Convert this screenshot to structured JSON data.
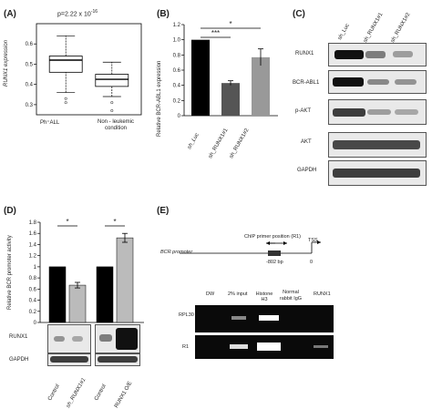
{
  "panelA": {
    "label": "(A)",
    "pvalue_text": "p=2.22 x 10",
    "pvalue_exp": "-16",
    "ylabel": "RUNX1 expression",
    "yticks": [
      "0.3",
      "0.4",
      "0.5",
      "0.6"
    ],
    "groups": [
      "Ph⁺ALL",
      "Non - leukemic condition"
    ]
  },
  "panelB": {
    "label": "(B)",
    "ylabel": "Relative BCR-ABL1 expression",
    "yticks": [
      "0",
      "0.2",
      "0.4",
      "0.6",
      "0.8",
      "1.0",
      "1.2"
    ],
    "xlabels": [
      "sh_Luc",
      "sh_RUNX1#1",
      "sh_RUNX1#2"
    ],
    "sig1": "***",
    "sig2": "*"
  },
  "panelC": {
    "label": "(C)",
    "lanes": [
      "sh_Luc",
      "sh_RUNX1#1",
      "sh_RUNX1#2"
    ],
    "rows": [
      "RUNX1",
      "BCR-ABL1",
      "p-AKT",
      "AKT",
      "GAPDH"
    ]
  },
  "panelD": {
    "label": "(D)",
    "ylabel": "Relative BCR promoter activity",
    "yticks": [
      "0",
      "0.2",
      "0.4",
      "0.6",
      "0.8",
      "1",
      "1.2",
      "1.4",
      "1.6",
      "1.8"
    ],
    "sig": "*",
    "blots": [
      "RUNX1",
      "GAPDH"
    ],
    "xlabels": [
      "Control",
      "sh_RUNX1#1",
      "Control",
      "RUNX1 O/E"
    ]
  },
  "panelE": {
    "label": "(E)",
    "primer_label": "ChIP primer position (R1)",
    "promoter_label": "BCR promoter",
    "tss": "TSS",
    "pos1": "-802 bp",
    "pos2": "0",
    "lanes": [
      "DW",
      "2% input",
      "Histone H3",
      "Normal rabbit IgG",
      "RUNX1"
    ],
    "rows": [
      "RPL30",
      "R1"
    ]
  },
  "chart_data": [
    {
      "type": "box",
      "ylabel": "RUNX1 expression",
      "ylim": [
        0.25,
        0.7
      ],
      "categories": [
        "Ph⁺ALL",
        "Non - leukemic condition"
      ],
      "boxes": [
        {
          "whisker_low": 0.36,
          "q1": 0.46,
          "median": 0.52,
          "q3": 0.54,
          "whisker_high": 0.64,
          "outliers": [
            0.31,
            0.33
          ]
        },
        {
          "whisker_low": 0.34,
          "q1": 0.39,
          "median": 0.425,
          "q3": 0.45,
          "whisker_high": 0.51,
          "outliers": [
            0.27,
            0.31
          ]
        }
      ]
    },
    {
      "type": "bar",
      "ylabel": "Relative BCR-ABL1 expression",
      "ylim": [
        0,
        1.2
      ],
      "categories": [
        "sh_Luc",
        "sh_RUNX1#1",
        "sh_RUNX1#2"
      ],
      "values": [
        1.0,
        0.43,
        0.77
      ],
      "errors": [
        0,
        0.03,
        0.11
      ],
      "colors": [
        "#000000",
        "#555555",
        "#999999"
      ]
    },
    {
      "type": "bar",
      "ylabel": "Relative BCR promoter activity",
      "ylim": [
        0,
        1.8
      ],
      "categories": [
        "Control",
        "sh_RUNX1#1",
        "Control",
        "RUNX1 O/E"
      ],
      "values": [
        1.0,
        0.67,
        1.0,
        1.52
      ],
      "errors": [
        0,
        0.05,
        0,
        0.08
      ],
      "colors": [
        "#000000",
        "#bbbbbb",
        "#000000",
        "#bbbbbb"
      ]
    }
  ]
}
